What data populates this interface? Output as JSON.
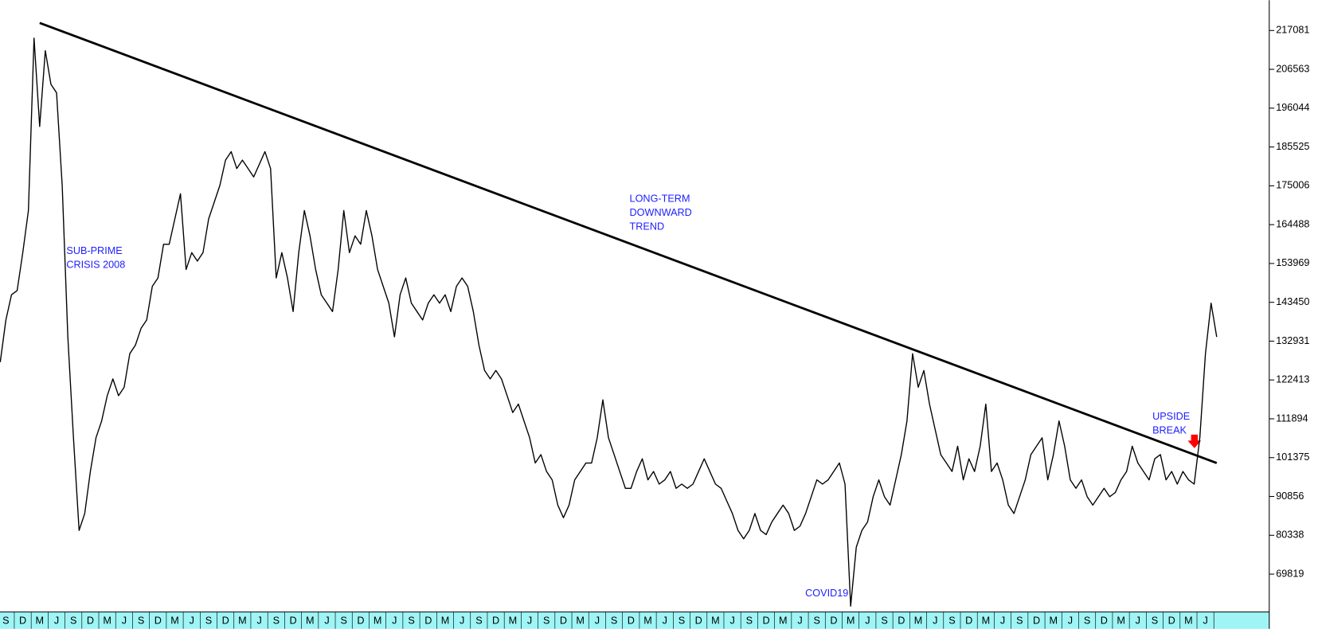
{
  "chart_data": {
    "type": "line",
    "categories": [
      null,
      "S",
      null,
      null,
      "D",
      null,
      null,
      "M",
      null,
      null,
      "J",
      null,
      null,
      "S",
      null,
      null,
      "D",
      null,
      null,
      "M",
      null,
      null,
      "J",
      null,
      null,
      "S",
      null,
      null,
      "D",
      null,
      null,
      "M",
      null,
      null,
      "J",
      null,
      null,
      "S",
      null,
      null,
      "D",
      null,
      null,
      "M",
      null,
      null,
      "J",
      null,
      null,
      "S",
      null,
      null,
      "D",
      null,
      null,
      "M",
      null,
      null,
      "J",
      null,
      null,
      "S",
      null,
      null,
      "D",
      null,
      null,
      "M",
      null,
      null,
      "J",
      null,
      null,
      "S",
      null,
      null,
      "D",
      null,
      null,
      "M",
      null,
      null,
      "J",
      null,
      null,
      "S",
      null,
      null,
      "D",
      null,
      null,
      "M",
      null,
      null,
      "J",
      null,
      null,
      "S",
      null,
      null,
      "D",
      null,
      null,
      "M",
      null,
      null,
      "J",
      null,
      null,
      "S",
      null,
      null,
      "D",
      null,
      null,
      "M",
      null,
      null,
      "J",
      null,
      null,
      "S",
      null,
      null,
      "D",
      null,
      null,
      "M",
      null,
      null,
      "J",
      null,
      null,
      "S",
      null,
      null,
      "D",
      null,
      null,
      "M",
      null,
      null,
      "J",
      null,
      null,
      "S",
      null,
      null,
      "D",
      null,
      null,
      "M",
      null,
      null,
      "J",
      null,
      null,
      "S",
      null,
      null,
      "D",
      null,
      null,
      "M",
      null,
      null,
      "J",
      null,
      null,
      "S",
      null,
      null,
      "D",
      null,
      null,
      "M",
      null,
      null,
      "J",
      null,
      null,
      "S",
      null,
      null,
      "D",
      null,
      null,
      "M",
      null,
      null,
      "J",
      null,
      null,
      "S",
      null,
      null,
      "D",
      null,
      null,
      "M",
      null,
      null,
      "J",
      null,
      null,
      "S",
      null,
      null,
      "D",
      null,
      null,
      "M",
      null,
      null,
      "J",
      null,
      null
    ],
    "series": [
      {
        "color": "#000000",
        "values": [
          127260,
          138660,
          145500,
          146640,
          156900,
          168300,
          215000,
          191100,
          211600,
          202500,
          200200,
          175100,
          134100,
          106750,
          81670,
          86230,
          97630,
          106750,
          111300,
          118150,
          122700,
          118150,
          120430,
          129540,
          131830,
          136380,
          138660,
          147780,
          150060,
          159180,
          159180,
          166020,
          172860,
          152340,
          156900,
          154620,
          156900,
          166020,
          170580,
          175140,
          181970,
          184260,
          179700,
          181970,
          179700,
          177420,
          180840,
          184260,
          179700,
          150060,
          156900,
          150060,
          140940,
          156900,
          168300,
          161460,
          152340,
          145500,
          143220,
          140940,
          152340,
          168300,
          156900,
          161460,
          159180,
          168300,
          161460,
          152340,
          147780,
          143220,
          134100,
          145500,
          150060,
          143220,
          140940,
          138660,
          143220,
          145500,
          143220,
          145500,
          140940,
          147780,
          150060,
          147780,
          140940,
          131830,
          124990,
          122700,
          124990,
          122700,
          118150,
          113590,
          115870,
          111300,
          106750,
          99910,
          102190,
          97630,
          95350,
          88510,
          85090,
          88510,
          95350,
          97630,
          99910,
          99910,
          106750,
          117010,
          106750,
          102190,
          97630,
          93070,
          93070,
          97630,
          101050,
          95350,
          97630,
          94210,
          95350,
          97630,
          93070,
          94210,
          93070,
          94210,
          97630,
          101050,
          97630,
          94210,
          93070,
          89650,
          86230,
          81670,
          79390,
          81670,
          86230,
          81670,
          80530,
          83950,
          86230,
          88510,
          86230,
          81670,
          82810,
          86230,
          90790,
          95350,
          94210,
          95350,
          97630,
          99910,
          94210,
          61160,
          77110,
          81670,
          83950,
          90790,
          95350,
          90790,
          88510,
          95350,
          102190,
          111300,
          129540,
          120430,
          124990,
          115870,
          109030,
          102190,
          99910,
          97630,
          104470,
          95350,
          101050,
          97630,
          104470,
          115870,
          97630,
          99910,
          95350,
          88510,
          86230,
          90790,
          95350,
          102190,
          104470,
          106750,
          95350,
          102190,
          111300,
          104470,
          95350,
          93070,
          95350,
          90790,
          88510,
          90790,
          93070,
          90790,
          91930,
          95350,
          97630,
          104470,
          99910,
          97630,
          95350,
          101050,
          102190,
          95350,
          97630,
          94210,
          97630,
          95350,
          94210,
          106750,
          129540,
          143220,
          134100
        ]
      }
    ],
    "trendline": {
      "color": "#000000",
      "from": [
        7,
        219135
      ],
      "to": [
        216,
        99906
      ]
    },
    "ylim": [
      59557,
      225290
    ],
    "yticks": [
      217081,
      206563,
      196044,
      185525,
      175006,
      164488,
      153969,
      143450,
      132931,
      122413,
      111894,
      101375,
      90856,
      80338,
      69819
    ],
    "annotations": [
      {
        "lines": [
          "SUB-PRIME",
          "CRISIS 2008"
        ]
      },
      {
        "lines": [
          "LONG-TERM",
          "DOWNWARD",
          "TREND"
        ]
      },
      {
        "lines": [
          "UPSIDE",
          "BREAK"
        ]
      },
      {
        "lines": [
          "COVID19"
        ]
      }
    ]
  }
}
